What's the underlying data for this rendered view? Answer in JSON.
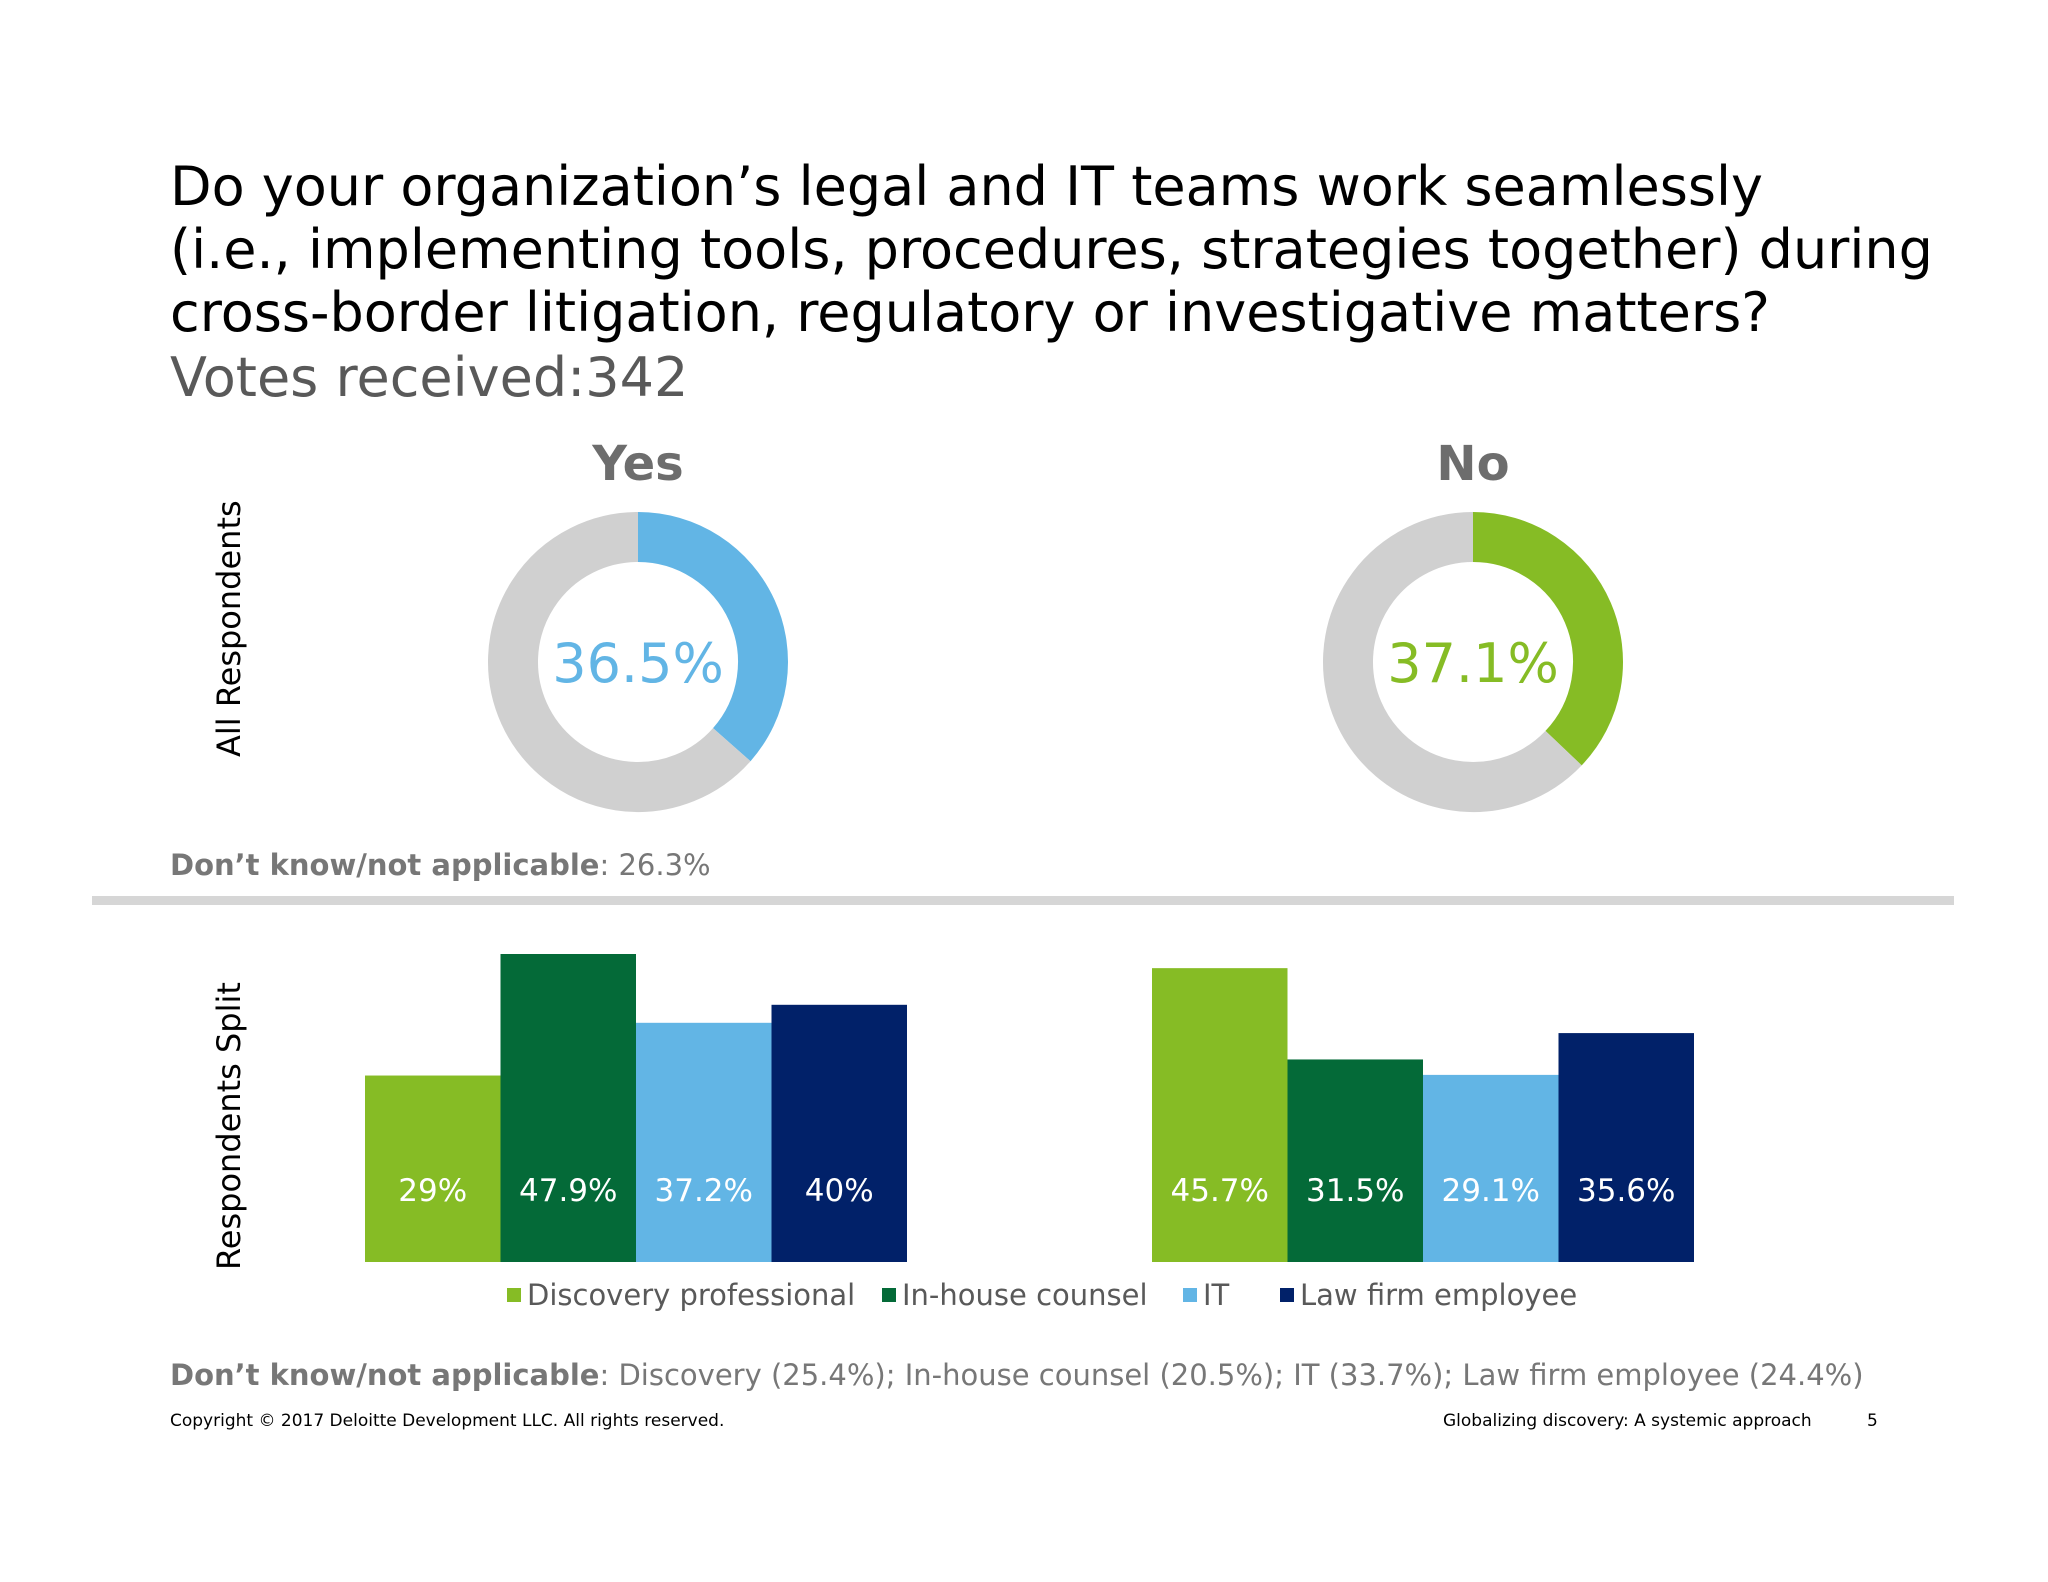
{
  "title_lines": [
    "Do your organization’s legal and IT teams work seamlessly",
    "(i.e., implementing tools, procedures, strategies together) during",
    "cross-border litigation, regulatory or investigative matters?"
  ],
  "votes_text": "Votes received:342",
  "row_labels": {
    "top": "All Respondents",
    "bottom": "Respondents Split"
  },
  "top_dont_know": {
    "label": "Don’t know/not applicable",
    "value": ":  26.3%"
  },
  "bottom_dont_know": {
    "label": "Don’t know/not applicable",
    "value": ": Discovery (25.4%); In-house counsel (20.5%); IT (33.7%); Law firm employee (24.4%)"
  },
  "legend": [
    {
      "label": "Discovery professional",
      "color": "#86bc25"
    },
    {
      "label": "In-house counsel",
      "color": "#046a38"
    },
    {
      "label": "IT",
      "color": "#62b5e5"
    },
    {
      "label": "Law firm employee",
      "color": "#012169"
    }
  ],
  "footer": {
    "copyright": "Copyright © 2017 Deloitte Development LLC. All rights reserved.",
    "doc_title": "Globalizing discovery: A systemic approach",
    "page": "5"
  },
  "chart_data": [
    {
      "type": "pie",
      "title": "Yes",
      "values": [
        36.5,
        63.5
      ],
      "labels": [
        "36.5%",
        ""
      ],
      "colors": [
        "#62b5e5",
        "#d0d0d0"
      ]
    },
    {
      "type": "pie",
      "title": "No",
      "values": [
        37.1,
        62.9
      ],
      "labels": [
        "37.1%",
        ""
      ],
      "colors": [
        "#86bc25",
        "#d0d0d0"
      ]
    },
    {
      "type": "bar",
      "title": "",
      "categories": [
        "Discovery professional",
        "In-house counsel",
        "IT",
        "Law firm employee"
      ],
      "values": [
        29,
        47.9,
        37.2,
        40
      ],
      "labels": [
        "29%",
        "47.9%",
        "37.2%",
        "40%"
      ],
      "colors": [
        "#86bc25",
        "#046a38",
        "#62b5e5",
        "#012169"
      ]
    },
    {
      "type": "bar",
      "title": "",
      "categories": [
        "Discovery professional",
        "In-house counsel",
        "IT",
        "Law firm employee"
      ],
      "values": [
        45.7,
        31.5,
        29.1,
        35.6
      ],
      "labels": [
        "45.7%",
        "31.5%",
        "29.1%",
        "35.6%"
      ],
      "colors": [
        "#86bc25",
        "#046a38",
        "#62b5e5",
        "#012169"
      ]
    }
  ]
}
